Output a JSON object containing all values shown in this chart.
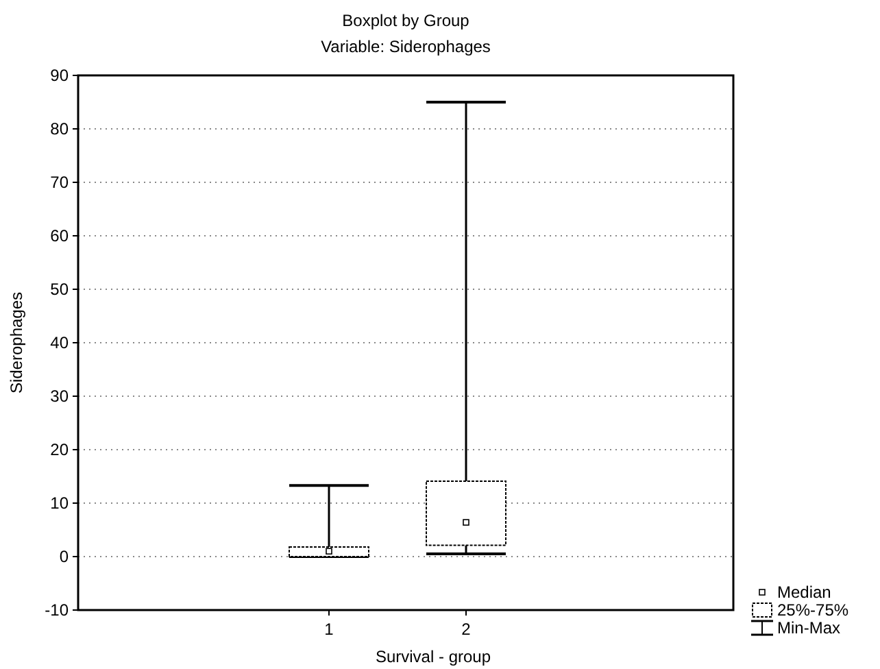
{
  "chart_data": {
    "type": "box",
    "title": "Boxplot by Group",
    "subtitle": "Variable: Siderophages",
    "xlabel": "Survival - group",
    "ylabel": "Siderophages",
    "categories": [
      "1",
      "2"
    ],
    "boxes": [
      {
        "low": 0,
        "q1": 0,
        "median": 1,
        "q3": 1.8,
        "high": 13.3
      },
      {
        "low": 0.5,
        "q1": 2.1,
        "median": 6.4,
        "q3": 14.1,
        "high": 85
      }
    ],
    "annotations": [
      "Median",
      "25%-75%",
      "Min-Max"
    ],
    "ylim": [
      -10,
      90
    ],
    "yticks": [
      -10,
      0,
      10,
      20,
      30,
      40,
      50,
      60,
      70,
      80,
      90
    ],
    "grid": "y"
  }
}
